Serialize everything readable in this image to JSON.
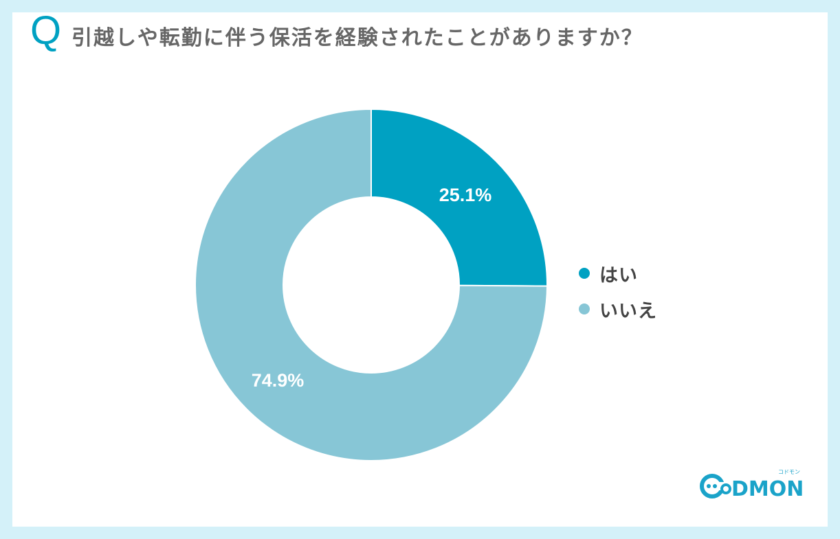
{
  "header": {
    "q_mark": "Q",
    "title": "引越しや転勤に伴う保活を経験されたことがありますか？"
  },
  "colors": {
    "background_border": "#d4f1f9",
    "card": "#ffffff",
    "accent": "#00a1c2",
    "yes": "#00a1c2",
    "no": "#87c6d6",
    "title_text": "#666666",
    "legend_text": "#444444"
  },
  "legend": [
    {
      "label": "はい",
      "color": "#00a1c2"
    },
    {
      "label": "いいえ",
      "color": "#87c6d6"
    }
  ],
  "slices": [
    {
      "label": "25.1%"
    },
    {
      "label": "74.9%"
    }
  ],
  "logo": {
    "text": "DMON",
    "ruby": "コドモン"
  },
  "chart_data": {
    "type": "pie",
    "subtype": "donut",
    "title": "引越しや転勤に伴う保活を経験されたことがありますか？",
    "categories": [
      "はい",
      "いいえ"
    ],
    "values": [
      25.1,
      74.9
    ],
    "unit": "%",
    "colors": [
      "#00a1c2",
      "#87c6d6"
    ],
    "data_labels": [
      "25.1%",
      "74.9%"
    ],
    "legend_position": "right",
    "start_angle": "12 o'clock, clockwise"
  }
}
